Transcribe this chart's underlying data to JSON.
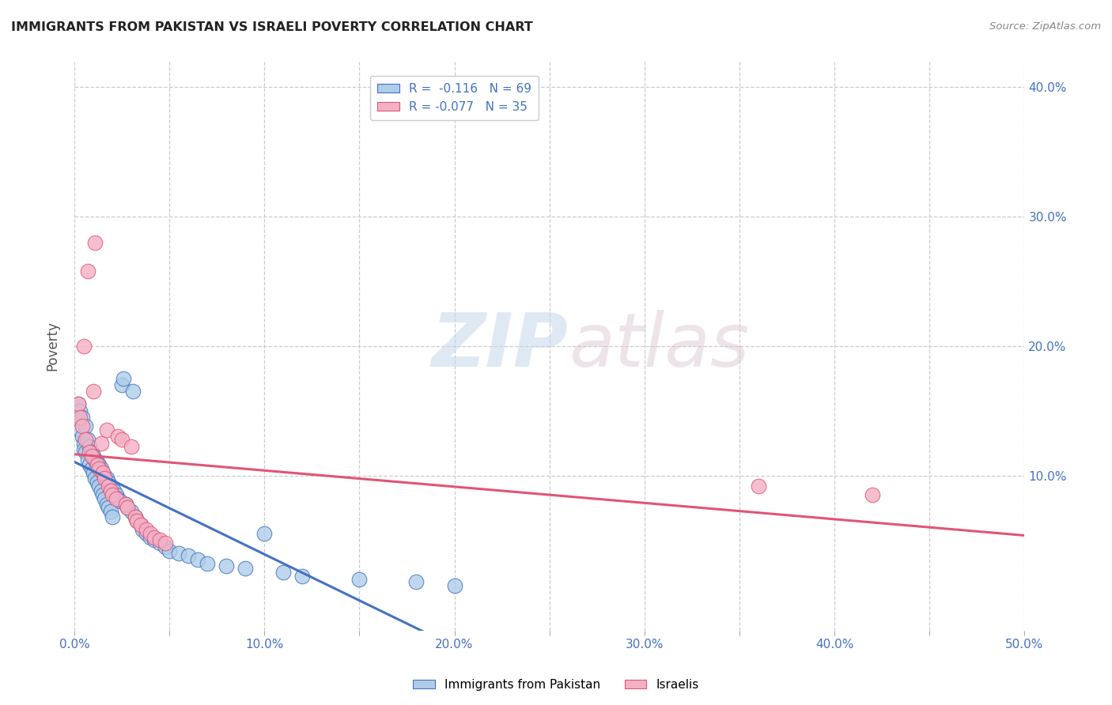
{
  "title": "IMMIGRANTS FROM PAKISTAN VS ISRAELI POVERTY CORRELATION CHART",
  "source": "Source: ZipAtlas.com",
  "ylabel": "Poverty",
  "xlim": [
    0.0,
    0.5
  ],
  "ylim": [
    -0.02,
    0.42
  ],
  "xtick_labels": [
    "0.0%",
    "",
    "10.0%",
    "",
    "20.0%",
    "",
    "30.0%",
    "",
    "40.0%",
    "",
    "50.0%"
  ],
  "xtick_vals": [
    0.0,
    0.05,
    0.1,
    0.15,
    0.2,
    0.25,
    0.3,
    0.35,
    0.4,
    0.45,
    0.5
  ],
  "ytick_labels": [
    "10.0%",
    "20.0%",
    "30.0%",
    "40.0%"
  ],
  "ytick_vals": [
    0.1,
    0.2,
    0.3,
    0.4
  ],
  "legend1_label": "R =  -0.116   N = 69",
  "legend2_label": "R = -0.077   N = 35",
  "legend1_color": "#aecde8",
  "legend2_color": "#f4b0c5",
  "line1_color": "#4472c4",
  "line2_color": "#e05575",
  "watermark_zip": "ZIP",
  "watermark_atlas": "atlas",
  "blue_dots": [
    [
      0.002,
      0.155
    ],
    [
      0.003,
      0.15
    ],
    [
      0.003,
      0.135
    ],
    [
      0.004,
      0.145
    ],
    [
      0.004,
      0.13
    ],
    [
      0.005,
      0.125
    ],
    [
      0.005,
      0.12
    ],
    [
      0.006,
      0.138
    ],
    [
      0.006,
      0.118
    ],
    [
      0.007,
      0.128
    ],
    [
      0.007,
      0.112
    ],
    [
      0.008,
      0.122
    ],
    [
      0.008,
      0.108
    ],
    [
      0.009,
      0.118
    ],
    [
      0.009,
      0.105
    ],
    [
      0.01,
      0.115
    ],
    [
      0.01,
      0.102
    ],
    [
      0.011,
      0.112
    ],
    [
      0.011,
      0.098
    ],
    [
      0.012,
      0.11
    ],
    [
      0.012,
      0.095
    ],
    [
      0.013,
      0.108
    ],
    [
      0.013,
      0.092
    ],
    [
      0.014,
      0.105
    ],
    [
      0.014,
      0.088
    ],
    [
      0.015,
      0.102
    ],
    [
      0.015,
      0.085
    ],
    [
      0.016,
      0.1
    ],
    [
      0.016,
      0.082
    ],
    [
      0.017,
      0.098
    ],
    [
      0.017,
      0.078
    ],
    [
      0.018,
      0.095
    ],
    [
      0.018,
      0.075
    ],
    [
      0.019,
      0.092
    ],
    [
      0.019,
      0.072
    ],
    [
      0.02,
      0.09
    ],
    [
      0.02,
      0.068
    ],
    [
      0.021,
      0.088
    ],
    [
      0.022,
      0.085
    ],
    [
      0.023,
      0.082
    ],
    [
      0.024,
      0.08
    ],
    [
      0.025,
      0.17
    ],
    [
      0.026,
      0.175
    ],
    [
      0.027,
      0.078
    ],
    [
      0.028,
      0.075
    ],
    [
      0.03,
      0.072
    ],
    [
      0.031,
      0.165
    ],
    [
      0.032,
      0.068
    ],
    [
      0.033,
      0.065
    ],
    [
      0.035,
      0.062
    ],
    [
      0.036,
      0.058
    ],
    [
      0.038,
      0.055
    ],
    [
      0.04,
      0.052
    ],
    [
      0.042,
      0.05
    ],
    [
      0.045,
      0.048
    ],
    [
      0.048,
      0.045
    ],
    [
      0.05,
      0.042
    ],
    [
      0.055,
      0.04
    ],
    [
      0.06,
      0.038
    ],
    [
      0.065,
      0.035
    ],
    [
      0.07,
      0.032
    ],
    [
      0.08,
      0.03
    ],
    [
      0.09,
      0.028
    ],
    [
      0.1,
      0.055
    ],
    [
      0.11,
      0.025
    ],
    [
      0.12,
      0.022
    ],
    [
      0.15,
      0.02
    ],
    [
      0.18,
      0.018
    ],
    [
      0.2,
      0.015
    ]
  ],
  "pink_dots": [
    [
      0.002,
      0.155
    ],
    [
      0.003,
      0.145
    ],
    [
      0.004,
      0.138
    ],
    [
      0.005,
      0.2
    ],
    [
      0.006,
      0.128
    ],
    [
      0.007,
      0.258
    ],
    [
      0.008,
      0.118
    ],
    [
      0.009,
      0.115
    ],
    [
      0.01,
      0.165
    ],
    [
      0.011,
      0.28
    ],
    [
      0.012,
      0.108
    ],
    [
      0.013,
      0.105
    ],
    [
      0.014,
      0.125
    ],
    [
      0.015,
      0.102
    ],
    [
      0.016,
      0.098
    ],
    [
      0.017,
      0.135
    ],
    [
      0.018,
      0.092
    ],
    [
      0.019,
      0.088
    ],
    [
      0.02,
      0.085
    ],
    [
      0.022,
      0.082
    ],
    [
      0.023,
      0.13
    ],
    [
      0.025,
      0.128
    ],
    [
      0.027,
      0.078
    ],
    [
      0.028,
      0.075
    ],
    [
      0.03,
      0.122
    ],
    [
      0.032,
      0.068
    ],
    [
      0.033,
      0.065
    ],
    [
      0.035,
      0.062
    ],
    [
      0.038,
      0.058
    ],
    [
      0.04,
      0.055
    ],
    [
      0.042,
      0.052
    ],
    [
      0.045,
      0.05
    ],
    [
      0.048,
      0.048
    ],
    [
      0.36,
      0.092
    ],
    [
      0.42,
      0.085
    ]
  ]
}
